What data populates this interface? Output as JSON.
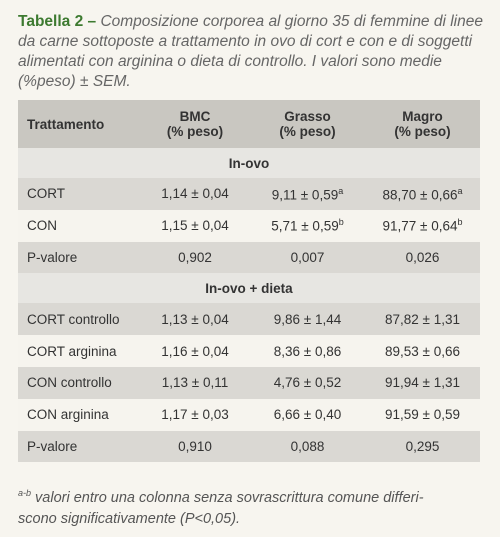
{
  "caption": {
    "label": "Tabella 2 –",
    "text": "Composizione corporea al giorno 35 di femmine di linee da carne sottoposte a trattamento in ovo di cort e con e di soggetti alimentati con arginina o dieta di controllo. I valori sono medie (%peso) ± SEM."
  },
  "table": {
    "header": [
      [
        "Trattamento"
      ],
      [
        "BMC",
        "(% peso)"
      ],
      [
        "Grasso",
        "(% peso)"
      ],
      [
        "Magro",
        "(% peso)"
      ]
    ],
    "rows": [
      {
        "section": "In-ovo"
      },
      {
        "cells": [
          "CORT",
          "1,14 ± 0,04",
          {
            "text": "9,11 ± 0,59",
            "sup": "a"
          },
          {
            "text": "88,70 ± 0,66",
            "sup": "a"
          }
        ]
      },
      {
        "cells": [
          "CON",
          "1,15 ± 0,04",
          {
            "text": "5,71 ± 0,59",
            "sup": "b"
          },
          {
            "text": "91,77 ± 0,64",
            "sup": "b"
          }
        ]
      },
      {
        "cells": [
          "P-valore",
          "0,902",
          "0,007",
          "0,026"
        ]
      },
      {
        "section": "In-ovo + dieta"
      },
      {
        "cells": [
          "CORT controllo",
          "1,13 ± 0,04",
          "9,86 ± 1,44",
          "87,82 ± 1,31"
        ]
      },
      {
        "cells": [
          "CORT arginina",
          "1,16 ± 0,04",
          "8,36 ± 0,86",
          "89,53 ± 0,66"
        ]
      },
      {
        "cells": [
          "CON controllo",
          "1,13 ± 0,11",
          "4,76 ± 0,52",
          "91,94 ± 1,31"
        ]
      },
      {
        "cells": [
          "CON arginina",
          "1,17 ± 0,03",
          "6,66 ± 0,40",
          "91,59 ± 0,59"
        ]
      },
      {
        "cells": [
          "P-valore",
          "0,910",
          "0,088",
          "0,295"
        ]
      }
    ]
  },
  "footnote": {
    "sup": "a-b",
    "lines": [
      "valori entro una colonna senza sovrascrittura comune differi-",
      "scono significativamente (P<0,05)."
    ]
  }
}
